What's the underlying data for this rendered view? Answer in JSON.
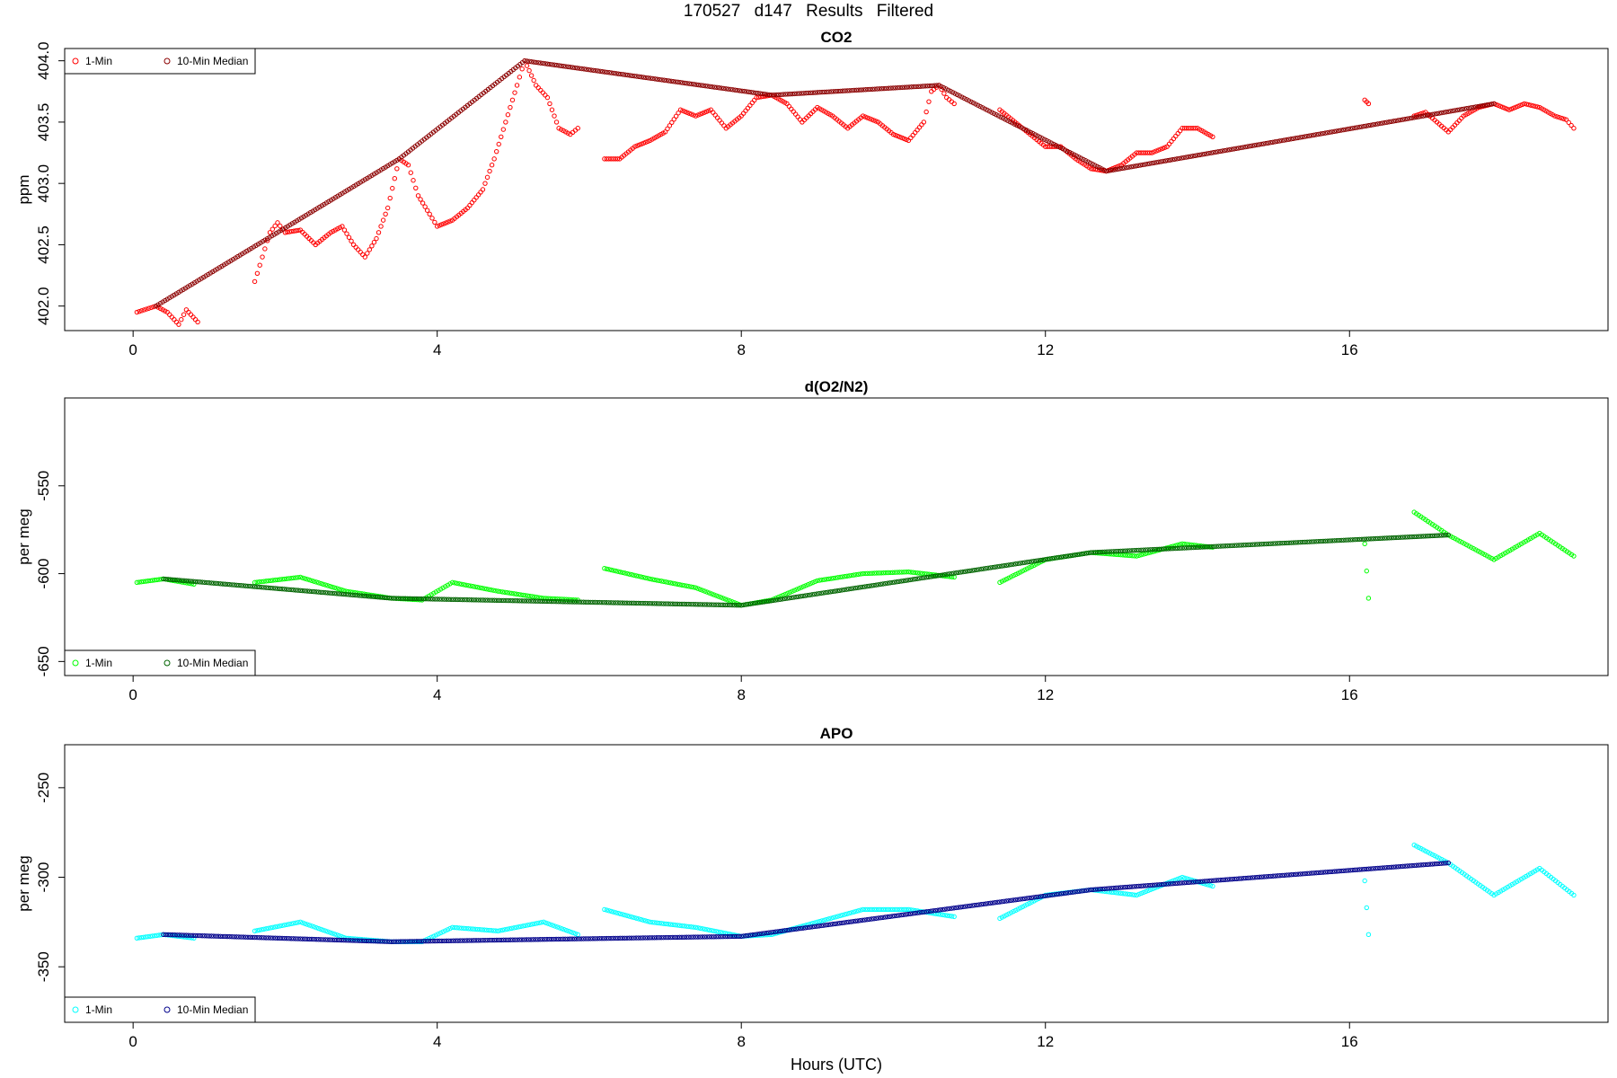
{
  "title": "170527   d147   Results Filtered",
  "x_axis_label": "Hours (UTC)",
  "chart_data": [
    {
      "type": "scatter",
      "title": "CO2",
      "ylabel": "ppm",
      "xlim": [
        -0.9,
        19.4
      ],
      "ylim": [
        401.8,
        404.1
      ],
      "xticks": [
        0,
        4,
        8,
        12,
        16
      ],
      "yticks": [
        402.0,
        402.5,
        403.0,
        403.5,
        404.0
      ],
      "ytick_labels": [
        "402.0",
        "402.5",
        "403.0",
        "403.5",
        "404.0"
      ],
      "grid": false,
      "legend": {
        "placement": "top-left",
        "entries": [
          {
            "label": "1-Min",
            "color": "#ff0000"
          },
          {
            "label": "10-Min Median",
            "color": "#8b0000"
          }
        ]
      },
      "series": [
        {
          "name": "1-Min",
          "color": "#ff0000",
          "segments": [
            {
              "x": [
                0.05,
                0.3,
                0.45,
                0.6,
                0.7,
                0.85
              ],
              "y": [
                401.95,
                402.0,
                401.95,
                401.85,
                401.97,
                401.87
              ]
            },
            {
              "x": [
                1.6,
                1.7,
                1.8,
                1.9,
                2.0,
                2.2,
                2.4,
                2.6,
                2.75,
                2.9,
                3.05,
                3.2,
                3.35,
                3.5,
                3.62,
                3.75,
                3.9,
                4.0,
                4.2,
                4.4,
                4.6,
                4.75,
                4.9,
                5.05,
                5.15,
                5.3,
                5.45,
                5.6,
                5.75,
                5.85
              ],
              "y": [
                402.2,
                402.4,
                402.6,
                402.68,
                402.6,
                402.62,
                402.5,
                402.6,
                402.65,
                402.5,
                402.4,
                402.55,
                402.8,
                403.2,
                403.15,
                402.9,
                402.75,
                402.65,
                402.7,
                402.8,
                402.95,
                403.2,
                403.5,
                403.8,
                404.0,
                403.8,
                403.7,
                403.45,
                403.4,
                403.45
              ]
            },
            {
              "x": [
                6.2,
                6.4,
                6.6,
                6.8,
                7.0,
                7.2,
                7.4,
                7.6,
                7.8,
                8.0,
                8.2,
                8.4,
                8.6,
                8.8,
                9.0,
                9.2,
                9.4,
                9.6,
                9.8,
                10.0,
                10.2,
                10.4,
                10.5,
                10.6,
                10.7,
                10.8
              ],
              "y": [
                403.2,
                403.2,
                403.3,
                403.35,
                403.42,
                403.6,
                403.55,
                403.6,
                403.45,
                403.55,
                403.7,
                403.72,
                403.65,
                403.5,
                403.62,
                403.55,
                403.45,
                403.55,
                403.5,
                403.4,
                403.35,
                403.5,
                403.75,
                403.8,
                403.7,
                403.65
              ]
            },
            {
              "x": [
                11.4,
                11.6,
                11.8,
                12.0,
                12.2,
                12.4,
                12.6,
                12.8,
                13.0,
                13.2,
                13.4,
                13.6,
                13.8,
                14.0,
                14.2
              ],
              "y": [
                403.6,
                403.5,
                403.4,
                403.3,
                403.3,
                403.2,
                403.12,
                403.1,
                403.15,
                403.25,
                403.25,
                403.3,
                403.45,
                403.45,
                403.38
              ]
            },
            {
              "x": [
                16.2,
                16.25
              ],
              "y": [
                403.68,
                403.65
              ]
            },
            {
              "x": [
                16.85,
                17.0,
                17.15,
                17.3,
                17.5,
                17.7,
                17.9,
                18.1,
                18.3,
                18.5,
                18.7,
                18.85,
                18.95
              ],
              "y": [
                403.55,
                403.58,
                403.5,
                403.42,
                403.55,
                403.62,
                403.65,
                403.6,
                403.65,
                403.62,
                403.55,
                403.52,
                403.45
              ]
            }
          ]
        },
        {
          "name": "10-Min Median",
          "color": "#8b0000",
          "segments": [
            {
              "x": [
                0.3,
                3.5,
                5.15,
                8.4,
                10.6,
                12.8,
                17.9
              ],
              "y": [
                402.0,
                403.2,
                404.0,
                403.72,
                403.8,
                403.1,
                403.65
              ]
            }
          ]
        }
      ]
    },
    {
      "type": "scatter",
      "title": "d(O2/N2)",
      "ylabel": "per meg",
      "xlim": [
        -0.9,
        19.4
      ],
      "ylim": [
        -658,
        -500
      ],
      "xticks": [
        0,
        4,
        8,
        12,
        16
      ],
      "yticks": [
        -650,
        -600,
        -550
      ],
      "ytick_labels": [
        "-650",
        "-600",
        "-550"
      ],
      "grid": false,
      "legend": {
        "placement": "bottom-left",
        "entries": [
          {
            "label": "1-Min",
            "color": "#00ff00"
          },
          {
            "label": "10-Min Median",
            "color": "#006400"
          }
        ]
      },
      "series": [
        {
          "name": "1-Min",
          "color": "#00ff00",
          "segments": [
            {
              "x": [
                0.05,
                0.4,
                0.8
              ],
              "y": [
                -605,
                -603,
                -606
              ]
            },
            {
              "x": [
                1.6,
                2.2,
                2.8,
                3.4,
                3.8,
                4.2,
                4.8,
                5.4,
                5.85
              ],
              "y": [
                -605,
                -602,
                -610,
                -614,
                -615,
                -605,
                -610,
                -614,
                -615
              ]
            },
            {
              "x": [
                6.2,
                6.8,
                7.4,
                8.0,
                8.4,
                9.0,
                9.6,
                10.2,
                10.8
              ],
              "y": [
                -597,
                -603,
                -608,
                -618,
                -615,
                -604,
                -600,
                -599,
                -602
              ]
            },
            {
              "x": [
                11.4,
                12.0,
                12.6,
                13.2,
                13.8,
                14.2
              ],
              "y": [
                -605,
                -592,
                -588,
                -590,
                -583,
                -585
              ]
            },
            {
              "x": [
                16.2,
                16.25
              ],
              "y": [
                -583,
                -614
              ]
            },
            {
              "x": [
                16.85,
                17.3,
                17.9,
                18.5,
                18.95
              ],
              "y": [
                -565,
                -578,
                -592,
                -577,
                -590
              ]
            }
          ]
        },
        {
          "name": "10-Min Median",
          "color": "#006400",
          "segments": [
            {
              "x": [
                0.4,
                3.4,
                8.0,
                12.6,
                17.3
              ],
              "y": [
                -603,
                -614,
                -618,
                -588,
                -578
              ]
            }
          ]
        }
      ]
    },
    {
      "type": "scatter",
      "title": "APO",
      "ylabel": "per meg",
      "xlim": [
        -0.9,
        19.4
      ],
      "ylim": [
        -381,
        -226
      ],
      "xticks": [
        0,
        4,
        8,
        12,
        16
      ],
      "yticks": [
        -350,
        -300,
        -250
      ],
      "ytick_labels": [
        "-350",
        "-300",
        "-250"
      ],
      "grid": false,
      "legend": {
        "placement": "bottom-left",
        "entries": [
          {
            "label": "1-Min",
            "color": "#00ffff"
          },
          {
            "label": "10-Min Median",
            "color": "#00008b"
          }
        ]
      },
      "series": [
        {
          "name": "1-Min",
          "color": "#00ffff",
          "segments": [
            {
              "x": [
                0.05,
                0.4,
                0.8
              ],
              "y": [
                -334,
                -332,
                -334
              ]
            },
            {
              "x": [
                1.6,
                2.2,
                2.8,
                3.4,
                3.8,
                4.2,
                4.8,
                5.4,
                5.85
              ],
              "y": [
                -330,
                -325,
                -334,
                -336,
                -336,
                -328,
                -330,
                -325,
                -332
              ]
            },
            {
              "x": [
                6.2,
                6.8,
                7.4,
                8.0,
                8.4,
                9.0,
                9.6,
                10.2,
                10.8
              ],
              "y": [
                -318,
                -325,
                -328,
                -333,
                -332,
                -325,
                -318,
                -318,
                -322
              ]
            },
            {
              "x": [
                11.4,
                12.0,
                12.6,
                13.2,
                13.8,
                14.2
              ],
              "y": [
                -323,
                -310,
                -307,
                -310,
                -300,
                -305
              ]
            },
            {
              "x": [
                16.2,
                16.25
              ],
              "y": [
                -302,
                -332
              ]
            },
            {
              "x": [
                16.85,
                17.3,
                17.9,
                18.5,
                18.95
              ],
              "y": [
                -282,
                -292,
                -310,
                -295,
                -310
              ]
            }
          ]
        },
        {
          "name": "10-Min Median",
          "color": "#00008b",
          "segments": [
            {
              "x": [
                0.4,
                3.4,
                8.0,
                12.6,
                17.3
              ],
              "y": [
                -332,
                -336,
                -333,
                -307,
                -292
              ]
            }
          ]
        }
      ]
    }
  ]
}
